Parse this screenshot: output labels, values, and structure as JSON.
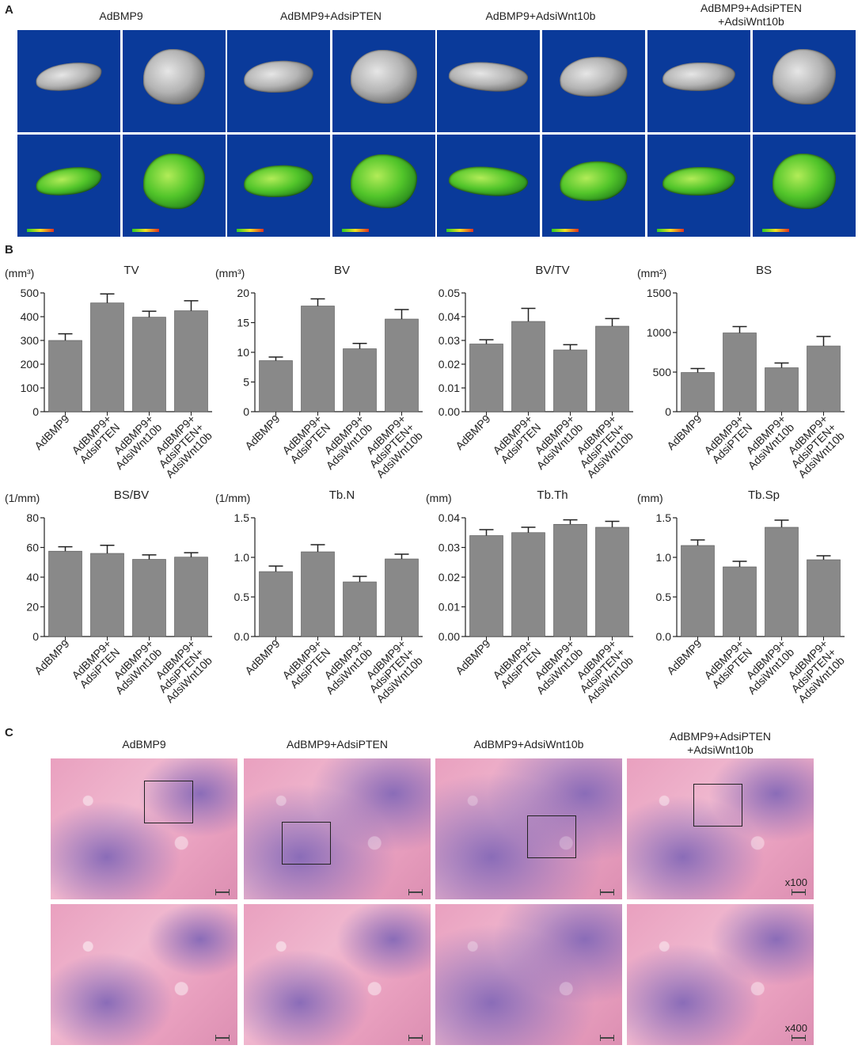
{
  "panels": {
    "a": "A",
    "b": "B",
    "c": "C"
  },
  "groups": [
    {
      "title_line1": "AdBMP9",
      "title_line2": ""
    },
    {
      "title_line1": "AdBMP9+AdsiPTEN",
      "title_line2": ""
    },
    {
      "title_line1": "AdBMP9+AdsiWnt10b",
      "title_line2": ""
    },
    {
      "title_line1": "AdBMP9+AdsiPTEN",
      "title_line2": "+AdsiWnt10b"
    }
  ],
  "colors": {
    "bar": "#898989",
    "ct_background": "#0a3a9a",
    "he_pink": "#e9a0bf",
    "he_purple": "#8a6cb8"
  },
  "histology": {
    "mag_low": "x100",
    "mag_high": "x400"
  },
  "chart_data": [
    {
      "type": "bar",
      "title": "TV",
      "unit": "(mm³)",
      "categories": [
        "AdBMP9",
        "AdBMP9+\nAdsiPTEN",
        "AdBMP9+\nAdsiWnt10b",
        "AdBMP9+\nAdsiPTEN+\nAdsiWnt10b"
      ],
      "values": [
        300,
        458,
        398,
        425
      ],
      "errors": [
        28,
        38,
        25,
        42
      ],
      "ylim": [
        0,
        500
      ],
      "ticks": [
        0,
        100,
        200,
        300,
        400,
        500
      ],
      "decimals": 0
    },
    {
      "type": "bar",
      "title": "BV",
      "unit": "(mm³)",
      "categories": [
        "AdBMP9",
        "AdBMP9+\nAdsiPTEN",
        "AdBMP9+\nAdsiWnt10b",
        "AdBMP9+\nAdsiPTEN+\nAdsiWnt10b"
      ],
      "values": [
        8.6,
        17.8,
        10.6,
        15.6
      ],
      "errors": [
        0.6,
        1.2,
        0.9,
        1.6
      ],
      "ylim": [
        0,
        20
      ],
      "ticks": [
        0,
        5,
        10,
        15,
        20
      ],
      "decimals": 0
    },
    {
      "type": "bar",
      "title": "BV/TV",
      "unit": "",
      "categories": [
        "AdBMP9",
        "AdBMP9+\nAdsiPTEN",
        "AdBMP9+\nAdsiWnt10b",
        "AdBMP9+\nAdsiPTEN+\nAdsiWnt10b"
      ],
      "values": [
        0.0285,
        0.038,
        0.026,
        0.036
      ],
      "errors": [
        0.0018,
        0.0055,
        0.0022,
        0.0032
      ],
      "ylim": [
        0,
        0.05
      ],
      "ticks": [
        0,
        0.01,
        0.02,
        0.03,
        0.04,
        0.05
      ],
      "decimals": 2
    },
    {
      "type": "bar",
      "title": "BS",
      "unit": "(mm²)",
      "categories": [
        "AdBMP9",
        "AdBMP9+\nAdsiPTEN",
        "AdBMP9+\nAdsiWnt10b",
        "AdBMP9+\nAdsiPTEN+\nAdsiWnt10b"
      ],
      "values": [
        495,
        995,
        555,
        830
      ],
      "errors": [
        50,
        80,
        60,
        120
      ],
      "ylim": [
        0,
        1500
      ],
      "ticks": [
        0,
        500,
        1000,
        1500
      ],
      "decimals": 0
    },
    {
      "type": "bar",
      "title": "BS/BV",
      "unit": "(1/mm)",
      "categories": [
        "AdBMP9",
        "AdBMP9+\nAdsiPTEN",
        "AdBMP9+\nAdsiWnt10b",
        "AdBMP9+\nAdsiPTEN+\nAdsiWnt10b"
      ],
      "values": [
        57.5,
        56,
        52,
        53.5
      ],
      "errors": [
        3,
        5.5,
        3,
        3
      ],
      "ylim": [
        0,
        80
      ],
      "ticks": [
        0,
        20,
        40,
        60,
        80
      ],
      "decimals": 0
    },
    {
      "type": "bar",
      "title": "Tb.N",
      "unit": "(1/mm)",
      "categories": [
        "AdBMP9",
        "AdBMP9+\nAdsiPTEN",
        "AdBMP9+\nAdsiWnt10b",
        "AdBMP9+\nAdsiPTEN+\nAdsiWnt10b"
      ],
      "values": [
        0.82,
        1.07,
        0.69,
        0.98
      ],
      "errors": [
        0.07,
        0.09,
        0.07,
        0.06
      ],
      "ylim": [
        0,
        1.5
      ],
      "ticks": [
        0,
        0.5,
        1.0,
        1.5
      ],
      "decimals": 1
    },
    {
      "type": "bar",
      "title": "Tb.Th",
      "unit": "(mm)",
      "categories": [
        "AdBMP9",
        "AdBMP9+\nAdsiPTEN",
        "AdBMP9+\nAdsiWnt10b",
        "AdBMP9+\nAdsiPTEN+\nAdsiWnt10b"
      ],
      "values": [
        0.034,
        0.035,
        0.0378,
        0.0368
      ],
      "errors": [
        0.002,
        0.0018,
        0.0015,
        0.002
      ],
      "ylim": [
        0,
        0.04
      ],
      "ticks": [
        0,
        0.01,
        0.02,
        0.03,
        0.04
      ],
      "decimals": 2
    },
    {
      "type": "bar",
      "title": "Tb.Sp",
      "unit": "(mm)",
      "categories": [
        "AdBMP9",
        "AdBMP9+\nAdsiPTEN",
        "AdBMP9+\nAdsiWnt10b",
        "AdBMP9+\nAdsiPTEN+\nAdsiWnt10b"
      ],
      "values": [
        1.15,
        0.88,
        1.38,
        0.97
      ],
      "errors": [
        0.07,
        0.07,
        0.09,
        0.05
      ],
      "ylim": [
        0,
        1.5
      ],
      "ticks": [
        0,
        0.5,
        1.0,
        1.5
      ],
      "decimals": 1
    }
  ]
}
